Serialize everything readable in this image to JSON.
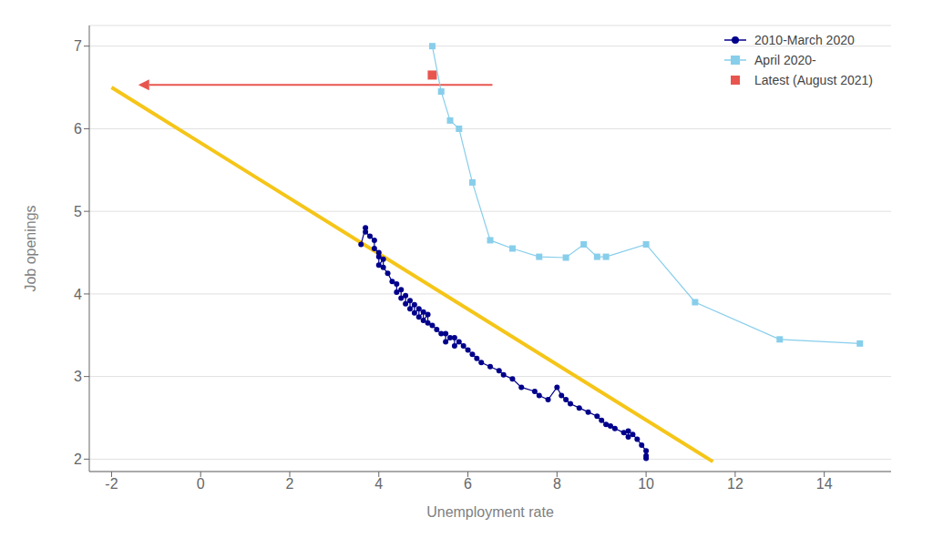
{
  "chart_data": {
    "type": "scatter",
    "title": "",
    "xlabel": "Unemployment rate",
    "ylabel": "Job openings",
    "xlim": [
      -2.5,
      15.5
    ],
    "ylim": [
      1.85,
      7.25
    ],
    "xticks": [
      -2,
      0,
      2,
      4,
      6,
      8,
      10,
      12,
      14
    ],
    "yticks": [
      2,
      3,
      4,
      5,
      6,
      7
    ],
    "grid": "y",
    "legend": "upper right",
    "series": [
      {
        "name": "2010-March 2020",
        "type": "line",
        "marker": "circle",
        "color": "#00008B",
        "x": [
          3.6,
          3.7,
          3.7,
          3.8,
          3.9,
          3.9,
          4.0,
          4.0,
          4.0,
          4.1,
          4.1,
          4.2,
          4.3,
          4.4,
          4.4,
          4.5,
          4.5,
          4.6,
          4.6,
          4.7,
          4.7,
          4.8,
          4.8,
          4.9,
          4.9,
          5.0,
          5.0,
          5.1,
          5.1,
          5.2,
          5.3,
          5.4,
          5.5,
          5.5,
          5.6,
          5.7,
          5.7,
          5.8,
          5.9,
          6.0,
          6.1,
          6.2,
          6.3,
          6.5,
          6.7,
          6.8,
          7.0,
          7.2,
          7.5,
          7.6,
          7.8,
          8.0,
          8.1,
          8.2,
          8.3,
          8.5,
          8.7,
          8.9,
          9.0,
          9.1,
          9.2,
          9.3,
          9.5,
          9.6,
          9.6,
          9.7,
          9.8,
          9.9,
          10.0,
          10.0,
          10.0
        ],
        "values": [
          4.6,
          4.8,
          4.75,
          4.7,
          4.65,
          4.55,
          4.5,
          4.45,
          4.35,
          4.42,
          4.32,
          4.25,
          4.15,
          4.12,
          4.02,
          4.05,
          3.95,
          3.98,
          3.88,
          3.92,
          3.82,
          3.87,
          3.77,
          3.82,
          3.72,
          3.78,
          3.68,
          3.75,
          3.65,
          3.62,
          3.57,
          3.52,
          3.52,
          3.42,
          3.47,
          3.47,
          3.37,
          3.42,
          3.37,
          3.32,
          3.27,
          3.22,
          3.17,
          3.12,
          3.07,
          3.02,
          2.97,
          2.87,
          2.82,
          2.77,
          2.72,
          2.87,
          2.77,
          2.72,
          2.67,
          2.62,
          2.57,
          2.52,
          2.47,
          2.42,
          2.4,
          2.37,
          2.32,
          2.27,
          2.34,
          2.3,
          2.24,
          2.17,
          2.1,
          2.04,
          2.01
        ]
      },
      {
        "name": "April 2020-",
        "type": "line",
        "marker": "square",
        "color": "#87CEEB",
        "x": [
          5.2,
          5.4,
          5.6,
          5.8,
          6.1,
          6.5,
          7.0,
          7.6,
          8.2,
          8.6,
          8.9,
          9.1,
          10.0,
          11.1,
          13.0,
          14.8
        ],
        "values": [
          7.0,
          6.45,
          6.1,
          6.0,
          5.35,
          4.65,
          4.55,
          4.45,
          4.44,
          4.6,
          4.45,
          4.45,
          4.6,
          3.9,
          3.45,
          3.4
        ]
      },
      {
        "name": "Latest (August 2021)",
        "type": "scatter",
        "marker": "square",
        "color": "#E8554E",
        "x": [
          5.2
        ],
        "values": [
          6.65
        ]
      },
      {
        "type": "line",
        "marker": "none",
        "color": "#F5C518",
        "x": [
          -2,
          11.5
        ],
        "values": [
          6.5,
          1.97
        ]
      }
    ],
    "annotations": [
      {
        "type": "arrow",
        "x_start": 6.55,
        "x_end": -1.4,
        "y": 6.53,
        "color": "#E8554E"
      }
    ]
  }
}
